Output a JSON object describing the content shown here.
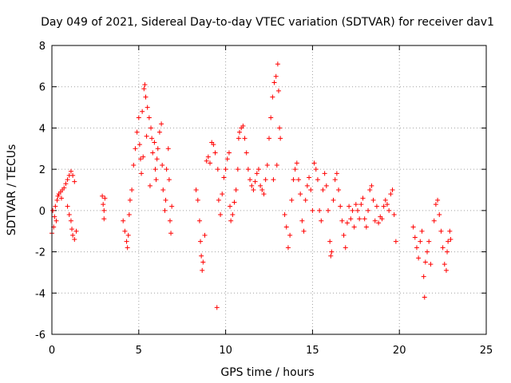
{
  "chart_data": {
    "type": "scatter",
    "title": "Day 049 of 2021, Sidereal Day-to-day VTEC variation (SDTVAR) for receiver dav1",
    "xlabel": "GPS time / hours",
    "ylabel": "SDTVAR / TECUs",
    "xlim": [
      0,
      25
    ],
    "ylim": [
      -6,
      8
    ],
    "xticks": [
      0,
      5,
      10,
      15,
      20,
      25
    ],
    "yticks": [
      -6,
      -4,
      -2,
      0,
      2,
      4,
      6,
      8
    ],
    "grid": true,
    "marker": "+",
    "color": "#ff0000",
    "series": [
      {
        "name": "dav1",
        "points": [
          [
            0.0,
            -1.1
          ],
          [
            0.1,
            -0.8
          ],
          [
            0.15,
            -0.3
          ],
          [
            0.2,
            0.2
          ],
          [
            0.3,
            0.5
          ],
          [
            0.35,
            0.7
          ],
          [
            0.4,
            0.8
          ],
          [
            0.5,
            0.9
          ],
          [
            0.55,
            0.6
          ],
          [
            0.6,
            1.0
          ],
          [
            0.7,
            1.1
          ],
          [
            0.8,
            1.3
          ],
          [
            0.9,
            1.5
          ],
          [
            1.0,
            1.7
          ],
          [
            1.1,
            1.9
          ],
          [
            1.2,
            1.7
          ],
          [
            1.3,
            1.4
          ],
          [
            0.9,
            0.2
          ],
          [
            1.0,
            -0.2
          ],
          [
            1.1,
            -0.5
          ],
          [
            1.15,
            -0.9
          ],
          [
            1.2,
            -1.2
          ],
          [
            1.3,
            -1.4
          ],
          [
            1.4,
            -1.0
          ],
          [
            0.05,
            0.0
          ],
          [
            0.25,
            -0.5
          ],
          [
            2.9,
            0.7
          ],
          [
            2.95,
            0.3
          ],
          [
            3.0,
            0.0
          ],
          [
            3.0,
            -0.4
          ],
          [
            3.05,
            0.6
          ],
          [
            4.1,
            -0.5
          ],
          [
            4.2,
            -1.0
          ],
          [
            4.3,
            -1.5
          ],
          [
            4.35,
            -1.8
          ],
          [
            4.4,
            -1.2
          ],
          [
            4.5,
            0.5
          ],
          [
            4.45,
            -0.2
          ],
          [
            4.6,
            1.0
          ],
          [
            4.7,
            2.2
          ],
          [
            4.8,
            3.0
          ],
          [
            4.9,
            3.8
          ],
          [
            5.0,
            4.5
          ],
          [
            5.05,
            3.2
          ],
          [
            5.1,
            2.5
          ],
          [
            5.2,
            4.8
          ],
          [
            5.3,
            5.9
          ],
          [
            5.35,
            6.1
          ],
          [
            5.4,
            5.5
          ],
          [
            5.5,
            5.0
          ],
          [
            5.45,
            3.6
          ],
          [
            5.6,
            4.5
          ],
          [
            5.7,
            4.0
          ],
          [
            5.75,
            3.5
          ],
          [
            5.8,
            2.8
          ],
          [
            5.9,
            3.3
          ],
          [
            5.95,
            2.0
          ],
          [
            6.0,
            1.5
          ],
          [
            6.05,
            2.5
          ],
          [
            6.1,
            3.0
          ],
          [
            6.2,
            3.8
          ],
          [
            6.3,
            4.2
          ],
          [
            6.35,
            2.2
          ],
          [
            6.4,
            1.0
          ],
          [
            6.5,
            0.0
          ],
          [
            6.55,
            0.5
          ],
          [
            6.6,
            2.0
          ],
          [
            6.7,
            3.0
          ],
          [
            6.75,
            1.5
          ],
          [
            6.8,
            -0.5
          ],
          [
            6.85,
            -1.1
          ],
          [
            6.9,
            0.2
          ],
          [
            5.15,
            1.8
          ],
          [
            5.25,
            2.6
          ],
          [
            5.65,
            1.2
          ],
          [
            8.3,
            1.0
          ],
          [
            8.4,
            0.5
          ],
          [
            8.5,
            -0.5
          ],
          [
            8.55,
            -1.5
          ],
          [
            8.6,
            -2.2
          ],
          [
            8.65,
            -2.9
          ],
          [
            8.7,
            -2.5
          ],
          [
            8.8,
            -1.2
          ],
          [
            8.9,
            2.4
          ],
          [
            9.0,
            2.6
          ],
          [
            9.1,
            2.3
          ],
          [
            9.2,
            3.3
          ],
          [
            9.3,
            3.2
          ],
          [
            9.4,
            2.8
          ],
          [
            9.5,
            -4.7
          ],
          [
            9.55,
            2.0
          ],
          [
            9.6,
            0.5
          ],
          [
            9.7,
            -0.2
          ],
          [
            9.8,
            0.8
          ],
          [
            9.9,
            1.6
          ],
          [
            10.0,
            2.0
          ],
          [
            10.1,
            2.5
          ],
          [
            10.2,
            2.8
          ],
          [
            10.25,
            0.2
          ],
          [
            10.3,
            -0.5
          ],
          [
            10.4,
            -0.2
          ],
          [
            10.5,
            0.4
          ],
          [
            10.6,
            1.0
          ],
          [
            10.7,
            2.0
          ],
          [
            10.75,
            3.5
          ],
          [
            10.8,
            3.8
          ],
          [
            10.9,
            4.0
          ],
          [
            11.0,
            4.1
          ],
          [
            11.1,
            3.5
          ],
          [
            11.2,
            2.8
          ],
          [
            11.3,
            2.0
          ],
          [
            11.4,
            1.5
          ],
          [
            11.5,
            1.2
          ],
          [
            11.6,
            1.0
          ],
          [
            11.7,
            1.4
          ],
          [
            11.8,
            1.8
          ],
          [
            11.9,
            2.0
          ],
          [
            12.0,
            1.2
          ],
          [
            12.1,
            1.0
          ],
          [
            12.2,
            0.8
          ],
          [
            12.3,
            1.5
          ],
          [
            12.4,
            2.2
          ],
          [
            12.5,
            3.5
          ],
          [
            12.6,
            4.5
          ],
          [
            12.7,
            5.5
          ],
          [
            12.8,
            6.2
          ],
          [
            12.9,
            6.5
          ],
          [
            13.0,
            7.1
          ],
          [
            13.05,
            5.8
          ],
          [
            13.1,
            4.0
          ],
          [
            13.15,
            3.5
          ],
          [
            12.75,
            1.5
          ],
          [
            12.95,
            2.2
          ],
          [
            13.4,
            -0.2
          ],
          [
            13.5,
            -0.8
          ],
          [
            13.6,
            -1.8
          ],
          [
            13.7,
            -1.2
          ],
          [
            13.8,
            0.5
          ],
          [
            13.9,
            1.5
          ],
          [
            14.0,
            2.0
          ],
          [
            14.1,
            2.3
          ],
          [
            14.2,
            1.5
          ],
          [
            14.3,
            0.8
          ],
          [
            14.4,
            -0.5
          ],
          [
            14.5,
            -1.0
          ],
          [
            14.6,
            0.5
          ],
          [
            14.7,
            1.2
          ],
          [
            14.8,
            1.6
          ],
          [
            14.9,
            1.0
          ],
          [
            15.0,
            0.0
          ],
          [
            15.1,
            2.3
          ],
          [
            15.2,
            2.0
          ],
          [
            15.3,
            1.5
          ],
          [
            15.4,
            0.0
          ],
          [
            15.5,
            -0.5
          ],
          [
            15.6,
            1.0
          ],
          [
            15.7,
            1.8
          ],
          [
            15.8,
            1.2
          ],
          [
            15.9,
            0.0
          ],
          [
            16.0,
            -1.5
          ],
          [
            16.05,
            -2.2
          ],
          [
            16.1,
            -2.0
          ],
          [
            16.2,
            0.5
          ],
          [
            16.3,
            1.5
          ],
          [
            16.4,
            1.8
          ],
          [
            16.5,
            1.0
          ],
          [
            16.6,
            0.2
          ],
          [
            16.7,
            -0.5
          ],
          [
            16.8,
            -1.2
          ],
          [
            16.9,
            -1.8
          ],
          [
            17.0,
            -0.6
          ],
          [
            17.1,
            0.2
          ],
          [
            17.2,
            -0.4
          ],
          [
            17.3,
            0.0
          ],
          [
            17.4,
            -0.8
          ],
          [
            17.5,
            0.3
          ],
          [
            17.6,
            0.0
          ],
          [
            17.7,
            -0.4
          ],
          [
            17.8,
            0.3
          ],
          [
            17.9,
            0.6
          ],
          [
            18.0,
            -0.4
          ],
          [
            18.1,
            -0.8
          ],
          [
            18.2,
            0.0
          ],
          [
            18.3,
            1.0
          ],
          [
            18.4,
            1.2
          ],
          [
            18.5,
            0.5
          ],
          [
            18.6,
            -0.5
          ],
          [
            18.7,
            0.2
          ],
          [
            18.8,
            -0.6
          ],
          [
            18.9,
            -0.3
          ],
          [
            19.0,
            -0.4
          ],
          [
            19.1,
            0.2
          ],
          [
            19.2,
            0.5
          ],
          [
            19.3,
            0.3
          ],
          [
            19.4,
            0.0
          ],
          [
            19.5,
            0.8
          ],
          [
            19.6,
            1.0
          ],
          [
            19.7,
            -0.2
          ],
          [
            19.8,
            -1.5
          ],
          [
            20.8,
            -0.8
          ],
          [
            20.9,
            -1.3
          ],
          [
            21.0,
            -1.8
          ],
          [
            21.1,
            -2.3
          ],
          [
            21.2,
            -1.5
          ],
          [
            21.3,
            -1.0
          ],
          [
            21.4,
            -3.2
          ],
          [
            21.45,
            -4.2
          ],
          [
            21.5,
            -2.5
          ],
          [
            21.6,
            -2.0
          ],
          [
            21.7,
            -1.5
          ],
          [
            21.8,
            -2.6
          ],
          [
            22.0,
            -0.5
          ],
          [
            22.1,
            0.3
          ],
          [
            22.2,
            0.5
          ],
          [
            22.3,
            -0.2
          ],
          [
            22.4,
            -1.0
          ],
          [
            22.5,
            -1.8
          ],
          [
            22.6,
            -2.6
          ],
          [
            22.7,
            -2.9
          ],
          [
            22.75,
            -2.0
          ],
          [
            22.8,
            -1.5
          ],
          [
            22.9,
            -1.0
          ],
          [
            22.95,
            -1.4
          ]
        ]
      }
    ]
  }
}
